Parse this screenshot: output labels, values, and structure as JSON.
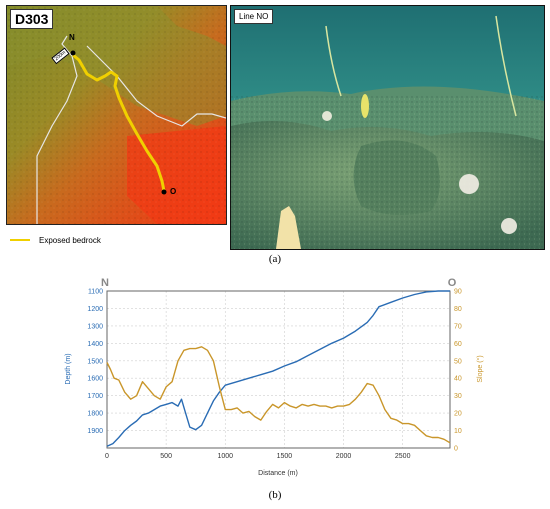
{
  "figure": {
    "panel_a_caption": "(a)",
    "panel_b_caption": "(b)"
  },
  "map": {
    "label": "D303",
    "point_start": "N",
    "point_end": "O",
    "scale_text": "200m",
    "legend_label": "Exposed bedrock",
    "track_color": "#f0d000"
  },
  "photo": {
    "label": "Line NO"
  },
  "chart_data": {
    "type": "line",
    "corner_left": "N",
    "corner_right": "O",
    "xlabel": "Distance (m)",
    "y1label": "Depth (m)",
    "y2label": "Slope (°)",
    "xlim": [
      0,
      2900
    ],
    "y1lim": [
      1100,
      2000
    ],
    "y1_inverted": true,
    "y2lim": [
      0,
      90
    ],
    "x_ticks": [
      0,
      500,
      1000,
      1500,
      2000,
      2500
    ],
    "y1_ticks": [
      1100,
      1200,
      1300,
      1400,
      1500,
      1600,
      1700,
      1800,
      1900
    ],
    "y2_ticks": [
      0,
      10,
      20,
      30,
      40,
      50,
      60,
      70,
      80,
      90
    ],
    "grid": true,
    "series": [
      {
        "axis": "left",
        "color": "#2a6cb4",
        "x": [
          0,
          50,
          100,
          150,
          200,
          250,
          300,
          350,
          400,
          450,
          500,
          550,
          600,
          630,
          660,
          700,
          750,
          800,
          850,
          900,
          950,
          1000,
          1100,
          1200,
          1300,
          1400,
          1500,
          1600,
          1700,
          1800,
          1900,
          2000,
          2100,
          2200,
          2250,
          2300,
          2400,
          2500,
          2600,
          2700,
          2800,
          2900
        ],
        "values": [
          1990,
          1975,
          1940,
          1900,
          1870,
          1845,
          1810,
          1800,
          1780,
          1760,
          1750,
          1740,
          1760,
          1720,
          1790,
          1880,
          1895,
          1870,
          1800,
          1730,
          1680,
          1640,
          1620,
          1600,
          1580,
          1560,
          1530,
          1505,
          1470,
          1435,
          1400,
          1370,
          1330,
          1280,
          1240,
          1190,
          1165,
          1140,
          1120,
          1105,
          1100,
          1100
        ]
      },
      {
        "axis": "right",
        "color": "#c9962a",
        "x": [
          0,
          30,
          60,
          100,
          150,
          200,
          250,
          300,
          350,
          400,
          450,
          500,
          550,
          600,
          650,
          700,
          750,
          800,
          850,
          900,
          950,
          1000,
          1050,
          1100,
          1150,
          1200,
          1250,
          1300,
          1350,
          1400,
          1450,
          1500,
          1550,
          1600,
          1650,
          1700,
          1750,
          1800,
          1850,
          1900,
          1950,
          2000,
          2050,
          2100,
          2150,
          2200,
          2250,
          2300,
          2350,
          2400,
          2450,
          2500,
          2550,
          2600,
          2650,
          2700,
          2750,
          2800,
          2850,
          2900
        ],
        "values": [
          49,
          45,
          40,
          39,
          32,
          28,
          30,
          38,
          34,
          30,
          28,
          35,
          38,
          50,
          56,
          57,
          57,
          58,
          56,
          50,
          35,
          22,
          22,
          23,
          20,
          21,
          18,
          16,
          21,
          25,
          23,
          26,
          24,
          23,
          25,
          24,
          25,
          24,
          24,
          23,
          24,
          24,
          25,
          28,
          32,
          37,
          36,
          30,
          22,
          17,
          16,
          14,
          14,
          13,
          10,
          7,
          6,
          6,
          5,
          3
        ]
      }
    ]
  }
}
